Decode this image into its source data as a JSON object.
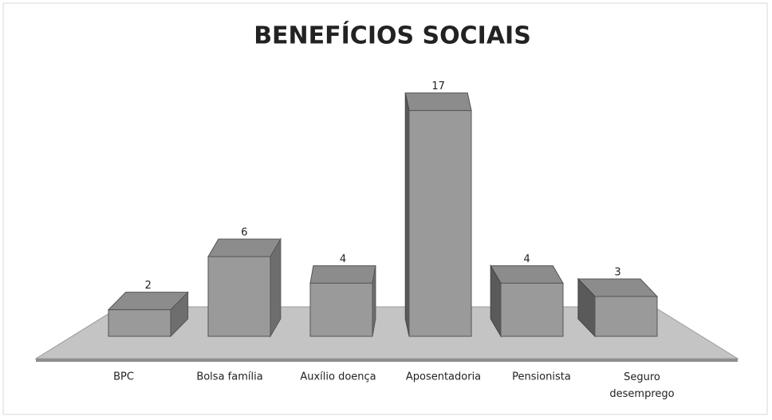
{
  "chart_data": {
    "type": "bar3d",
    "title": "BENEFÍCIOS SOCIAIS",
    "categories": [
      "BPC",
      "Bolsa família",
      "Auxílio doença",
      "Aposentadoria",
      "Pensionista",
      "Seguro desemprego"
    ],
    "values": [
      2,
      6,
      4,
      17,
      4,
      3
    ],
    "color": "#9a9a9a",
    "ylim": [
      0,
      18
    ]
  }
}
